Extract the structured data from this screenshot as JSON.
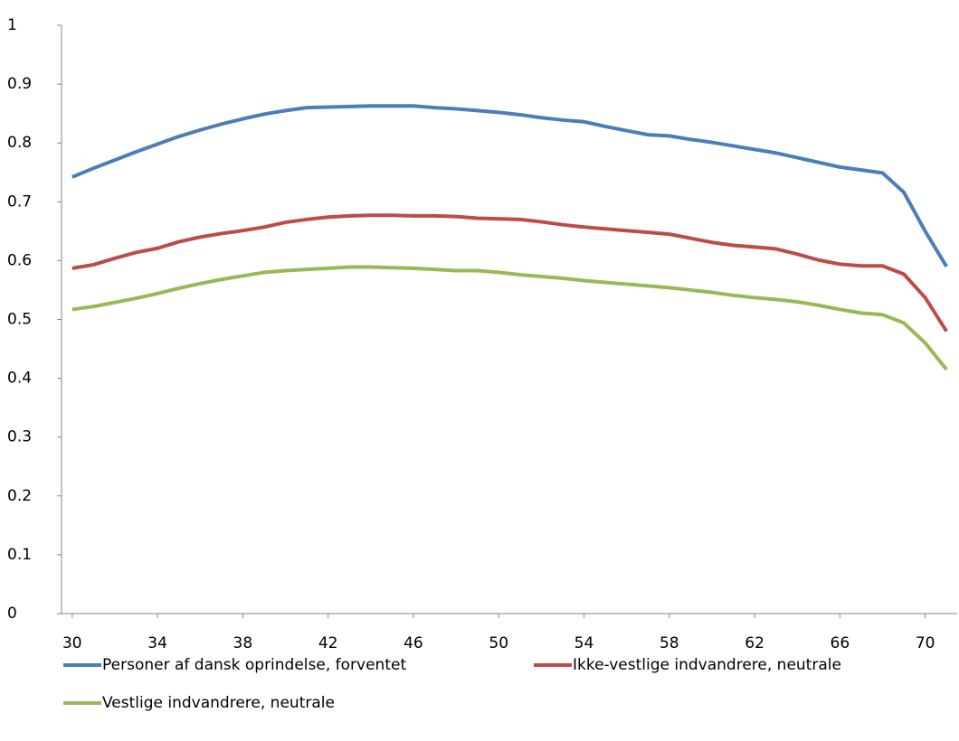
{
  "chart_data": {
    "type": "line",
    "x": [
      30,
      31,
      32,
      33,
      34,
      35,
      36,
      37,
      38,
      39,
      40,
      41,
      42,
      43,
      44,
      45,
      46,
      47,
      48,
      49,
      50,
      51,
      52,
      53,
      54,
      55,
      56,
      57,
      58,
      59,
      60,
      61,
      62,
      63,
      64,
      65,
      66,
      67,
      68,
      69,
      70,
      71
    ],
    "series": [
      {
        "name": "Personer af dansk oprindelse, forventet",
        "color": "#4a7ebb",
        "values": [
          0.742,
          0.757,
          0.771,
          0.785,
          0.798,
          0.811,
          0.822,
          0.832,
          0.841,
          0.849,
          0.855,
          0.86,
          0.861,
          0.862,
          0.863,
          0.863,
          0.863,
          0.86,
          0.858,
          0.855,
          0.852,
          0.848,
          0.843,
          0.839,
          0.836,
          0.828,
          0.821,
          0.814,
          0.812,
          0.806,
          0.801,
          0.795,
          0.789,
          0.783,
          0.775,
          0.767,
          0.759,
          0.754,
          0.749,
          0.716,
          0.65,
          0.59
        ]
      },
      {
        "name": "Ikke-vestlige indvandrere, neutrale",
        "color": "#be4b48",
        "values": [
          0.587,
          0.593,
          0.604,
          0.614,
          0.621,
          0.632,
          0.64,
          0.646,
          0.651,
          0.657,
          0.665,
          0.67,
          0.674,
          0.676,
          0.677,
          0.677,
          0.676,
          0.676,
          0.675,
          0.672,
          0.671,
          0.67,
          0.666,
          0.661,
          0.657,
          0.654,
          0.651,
          0.648,
          0.645,
          0.638,
          0.631,
          0.626,
          0.623,
          0.62,
          0.611,
          0.601,
          0.594,
          0.591,
          0.591,
          0.577,
          0.537,
          0.48
        ]
      },
      {
        "name": "Vestlige indvandrere, neutrale",
        "color": "#98b954",
        "values": [
          0.517,
          0.522,
          0.529,
          0.536,
          0.544,
          0.553,
          0.561,
          0.568,
          0.574,
          0.58,
          0.583,
          0.585,
          0.587,
          0.589,
          0.589,
          0.588,
          0.587,
          0.585,
          0.583,
          0.583,
          0.58,
          0.576,
          0.573,
          0.57,
          0.566,
          0.563,
          0.56,
          0.557,
          0.554,
          0.55,
          0.546,
          0.541,
          0.537,
          0.534,
          0.53,
          0.524,
          0.517,
          0.511,
          0.508,
          0.494,
          0.46,
          0.415
        ]
      }
    ],
    "xlim": [
      29.5,
      71.5
    ],
    "xticks": [
      30,
      34,
      38,
      42,
      46,
      50,
      54,
      58,
      62,
      66,
      70
    ],
    "ylim": [
      0,
      1
    ],
    "yticks": [
      0,
      0.1,
      0.2,
      0.3,
      0.4,
      0.5,
      0.6,
      0.7,
      0.8,
      0.9,
      1
    ],
    "grid": false,
    "legend": "bottom"
  }
}
